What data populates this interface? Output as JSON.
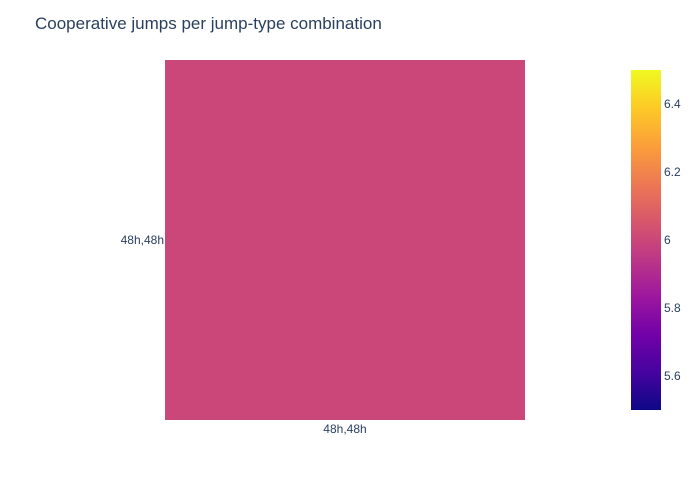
{
  "chart_data": {
    "type": "heatmap",
    "title": "Cooperative jumps per jump-type combination",
    "x_categories": [
      "48h,48h"
    ],
    "y_categories": [
      "48h,48h"
    ],
    "z": [
      [
        6
      ]
    ],
    "colorbar": {
      "range": [
        5.5,
        6.5
      ],
      "tick_values": [
        5.6,
        5.8,
        6,
        6.2,
        6.4
      ],
      "tick_labels": [
        "5.6",
        "5.8",
        "6",
        "6.2",
        "6.4"
      ],
      "colorscale": "Plasma",
      "colors": [
        "#0d0887",
        "#46039f",
        "#7201a8",
        "#9c179e",
        "#bd3786",
        "#d8576b",
        "#ed7953",
        "#fb9f3a",
        "#fdca26",
        "#f0f921"
      ]
    }
  }
}
